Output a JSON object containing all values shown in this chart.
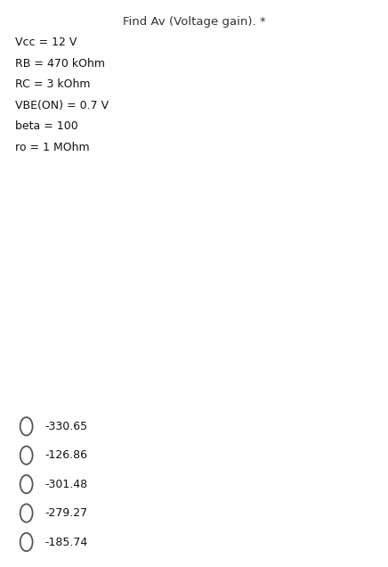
{
  "title": "Find Av (Voltage gain). *",
  "params": [
    "Vcc = 12 V",
    "RB = 470 kOhm",
    "RC = 3 kOhm",
    "VBE(ON) = 0.7 V",
    "beta = 100",
    "ro = 1 MOhm"
  ],
  "choices": [
    "-330.65",
    "-126.86",
    "-301.48",
    "-279.27",
    "-185.74"
  ],
  "circuit_bg": "#000000",
  "line_color": "#ffffff",
  "page_bg": "#ffffff",
  "title_color": "#333333",
  "param_color": "#111111",
  "choice_color": "#111111"
}
